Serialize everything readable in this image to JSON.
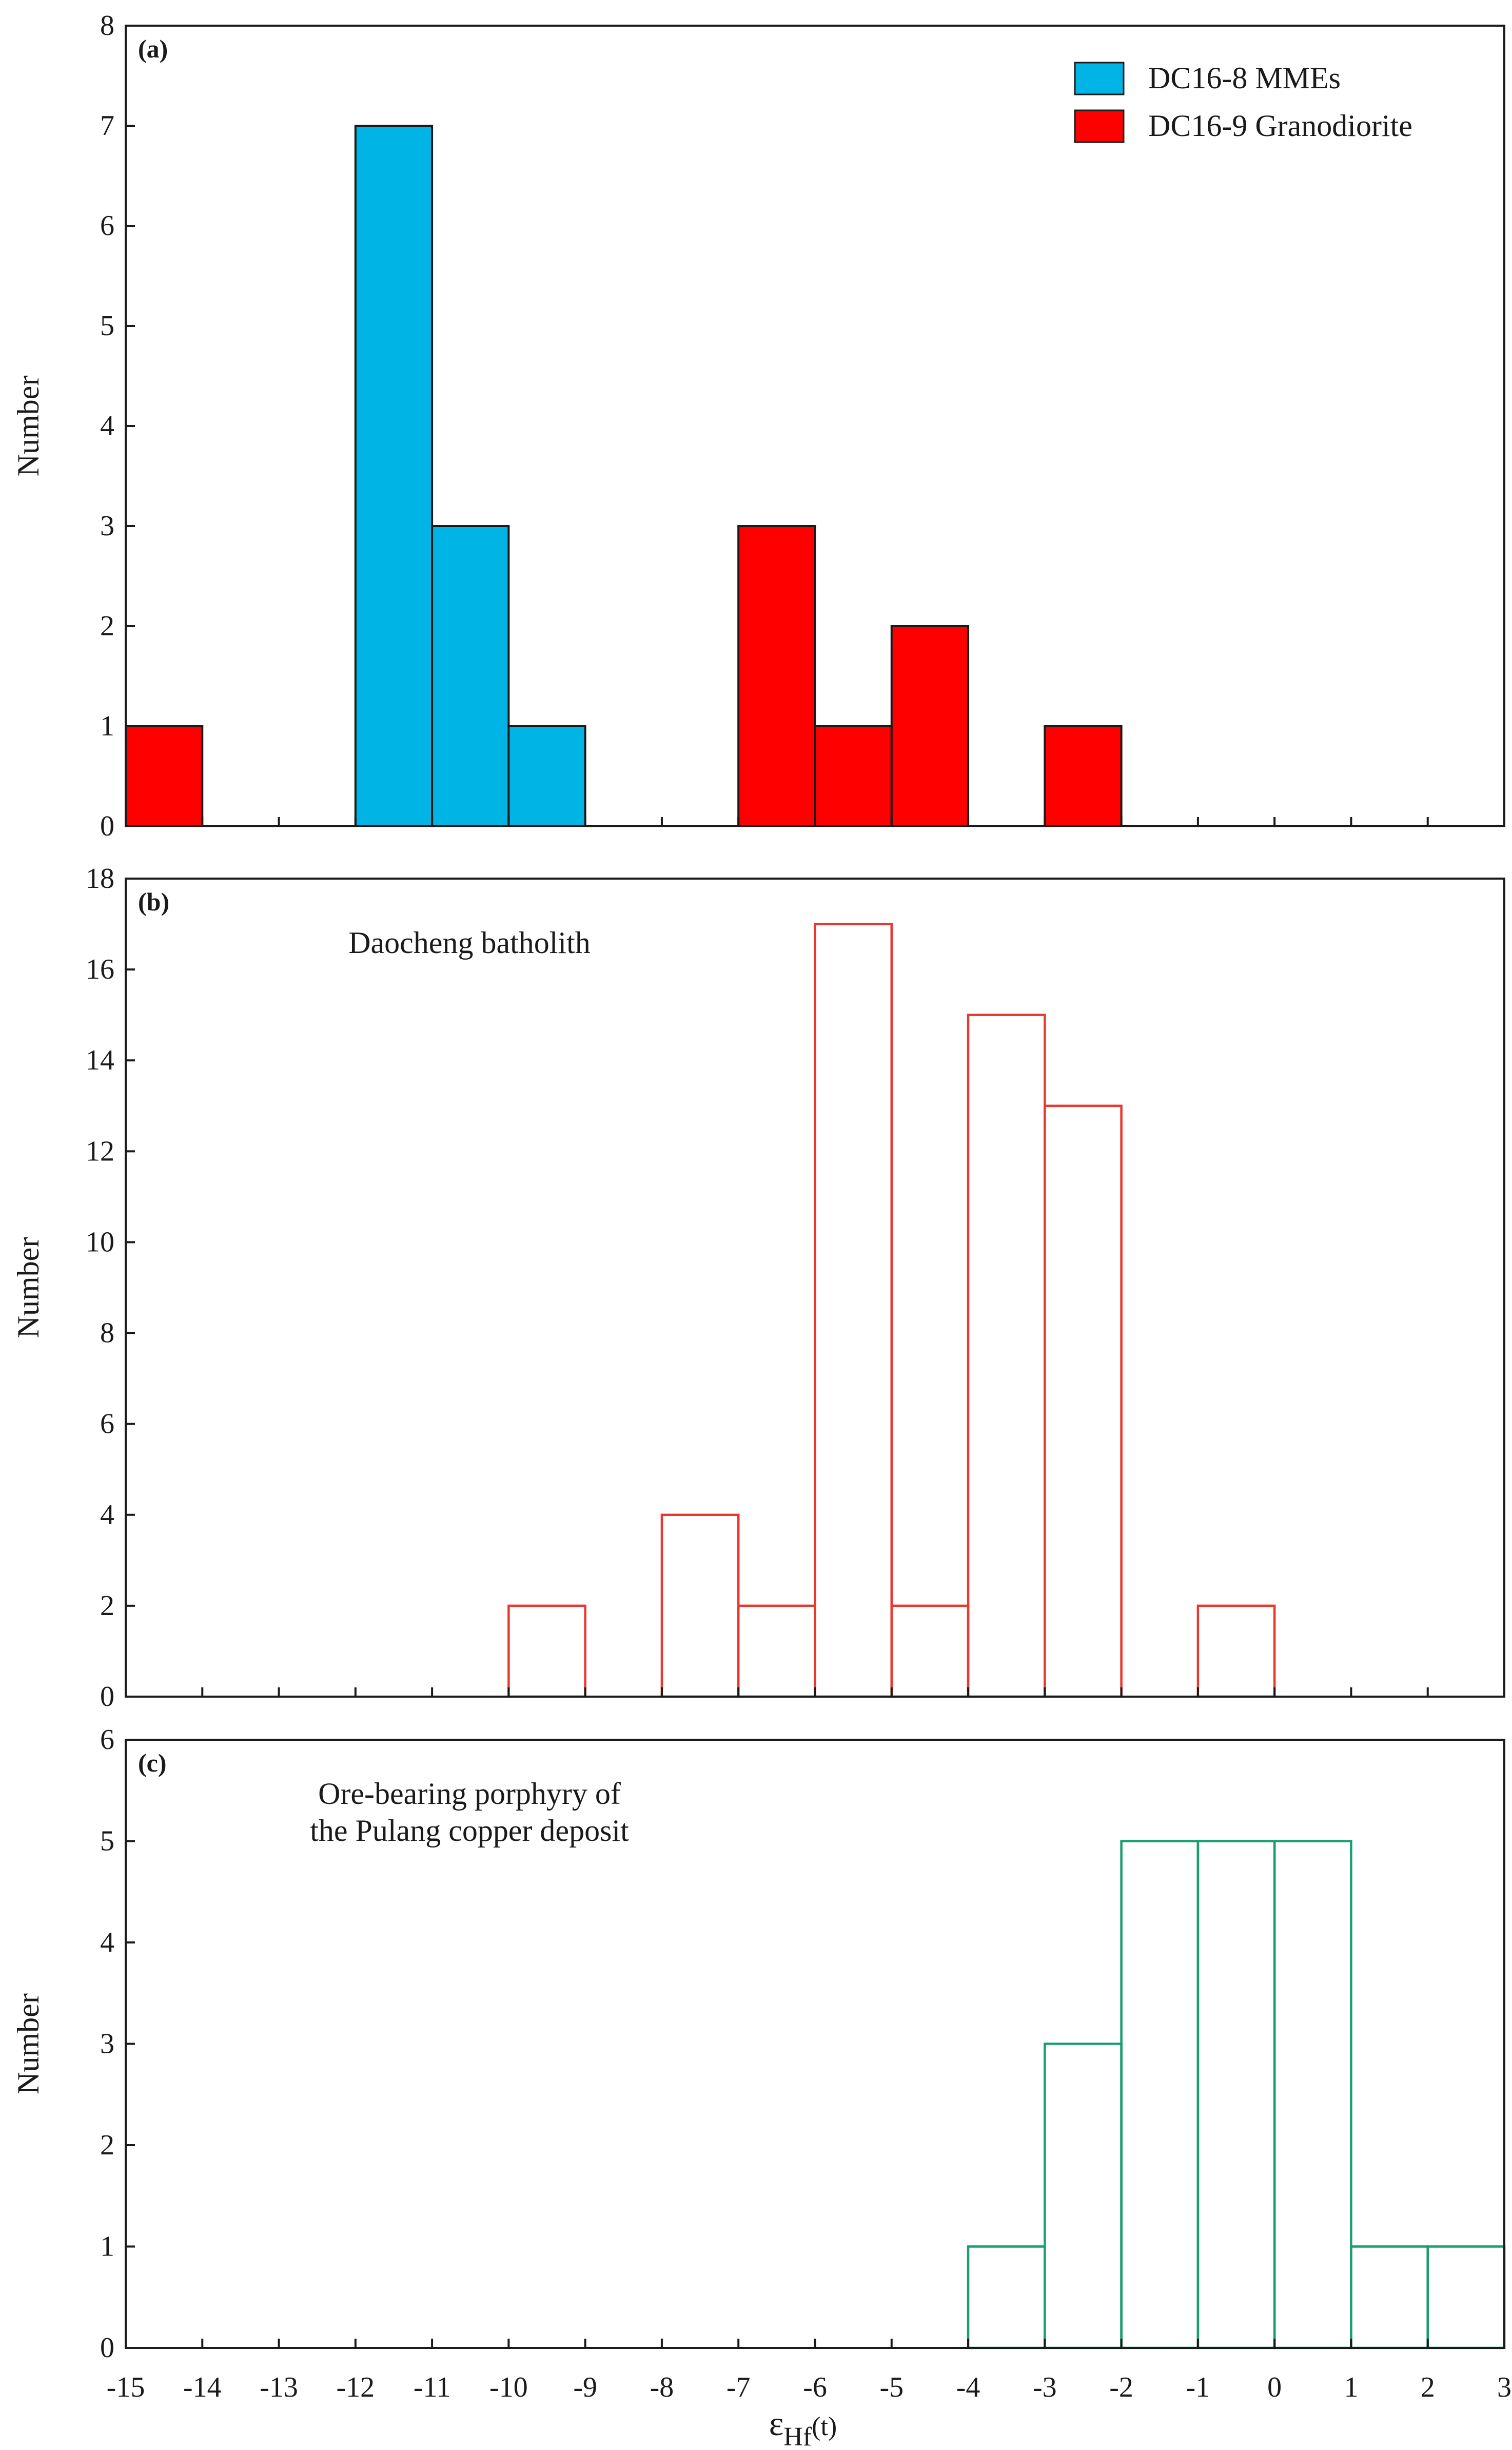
{
  "chart_data": [
    {
      "type": "bar",
      "panel": "(a)",
      "ylabel": "Number",
      "ylim": [
        0,
        8
      ],
      "yticks": [
        0,
        1,
        2,
        3,
        4,
        5,
        6,
        7,
        8
      ],
      "xlim": [
        -15,
        3
      ],
      "bin_width": 1,
      "legend_position": "top-right",
      "series": [
        {
          "name": "DC16-8 MMEs",
          "color": "#00b4e6",
          "style": "filled",
          "bins": [
            {
              "x0": -12,
              "x1": -11,
              "count": 7
            },
            {
              "x0": -11,
              "x1": -10,
              "count": 3
            },
            {
              "x0": -10,
              "x1": -9,
              "count": 1
            }
          ]
        },
        {
          "name": "DC16-9 Granodiorite",
          "color": "#ff0000",
          "style": "filled",
          "bins": [
            {
              "x0": -15,
              "x1": -14,
              "count": 1
            },
            {
              "x0": -7,
              "x1": -6,
              "count": 3
            },
            {
              "x0": -6,
              "x1": -5,
              "count": 1
            },
            {
              "x0": -5,
              "x1": -4,
              "count": 2
            },
            {
              "x0": -3,
              "x1": -2,
              "count": 1
            }
          ]
        }
      ]
    },
    {
      "type": "bar",
      "panel": "(b)",
      "annotation": [
        "Daocheng batholith"
      ],
      "ylabel": "Number",
      "ylim": [
        0,
        18
      ],
      "yticks": [
        0,
        2,
        4,
        6,
        8,
        10,
        12,
        14,
        16,
        18
      ],
      "xlim": [
        -15,
        3
      ],
      "bin_width": 1,
      "series": [
        {
          "name": "Daocheng batholith",
          "color": "#e8392f",
          "style": "outline",
          "bins": [
            {
              "x0": -10,
              "x1": -9,
              "count": 2
            },
            {
              "x0": -8,
              "x1": -7,
              "count": 4
            },
            {
              "x0": -7,
              "x1": -6,
              "count": 2
            },
            {
              "x0": -6,
              "x1": -5,
              "count": 17
            },
            {
              "x0": -5,
              "x1": -4,
              "count": 2
            },
            {
              "x0": -4,
              "x1": -3,
              "count": 15
            },
            {
              "x0": -3,
              "x1": -2,
              "count": 13
            },
            {
              "x0": -1,
              "x1": 0,
              "count": 2
            }
          ]
        }
      ]
    },
    {
      "type": "bar",
      "panel": "(c)",
      "annotation": [
        "Ore-bearing porphyry of",
        "the Pulang copper deposit"
      ],
      "ylabel": "Number",
      "ylim": [
        0,
        6
      ],
      "yticks": [
        0,
        1,
        2,
        3,
        4,
        5,
        6
      ],
      "xlim": [
        -15,
        3
      ],
      "bin_width": 1,
      "series": [
        {
          "name": "Pulang copper deposit",
          "color": "#1a9e6e",
          "style": "outline",
          "bins": [
            {
              "x0": -4,
              "x1": -3,
              "count": 1
            },
            {
              "x0": -3,
              "x1": -2,
              "count": 3
            },
            {
              "x0": -2,
              "x1": -1,
              "count": 5
            },
            {
              "x0": -1,
              "x1": 0,
              "count": 5
            },
            {
              "x0": 0,
              "x1": 1,
              "count": 5
            },
            {
              "x0": 1,
              "x1": 2,
              "count": 1
            },
            {
              "x0": 2,
              "x1": 3,
              "count": 1
            }
          ]
        }
      ]
    }
  ],
  "xaxis": {
    "ticks": [
      -15,
      -14,
      -13,
      -12,
      -11,
      -10,
      -9,
      -8,
      -7,
      -6,
      -5,
      -4,
      -3,
      -2,
      -1,
      0,
      1,
      2,
      3
    ],
    "label_main": "ε",
    "label_sub": "Hf",
    "label_tail": "(t)"
  }
}
